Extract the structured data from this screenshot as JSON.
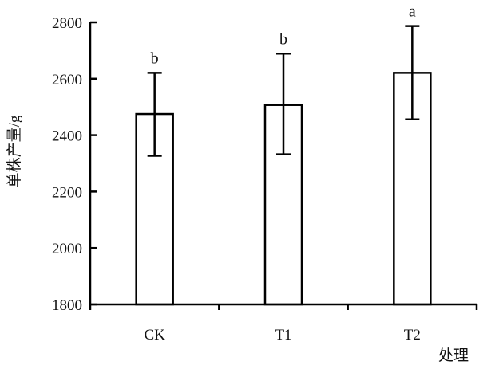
{
  "chart_data": {
    "type": "bar",
    "categories": [
      "CK",
      "T1",
      "T2"
    ],
    "values": [
      2475,
      2507,
      2621
    ],
    "error_upper": [
      2621,
      2689,
      2787
    ],
    "error_lower": [
      2327,
      2332,
      2456
    ],
    "significance": [
      "b",
      "b",
      "a"
    ],
    "title": "",
    "xlabel": "处理",
    "ylabel": "单株产量/g",
    "ylim": [
      1800,
      2800
    ],
    "yticks": [
      1800,
      2000,
      2200,
      2400,
      2600,
      2800
    ],
    "ytick_labels": [
      "1800",
      "2000",
      "2200",
      "2400",
      "2600",
      "2800"
    ],
    "grid": false,
    "legend": "none",
    "bar_fill": "#ffffff",
    "bar_stroke": "#000000"
  }
}
